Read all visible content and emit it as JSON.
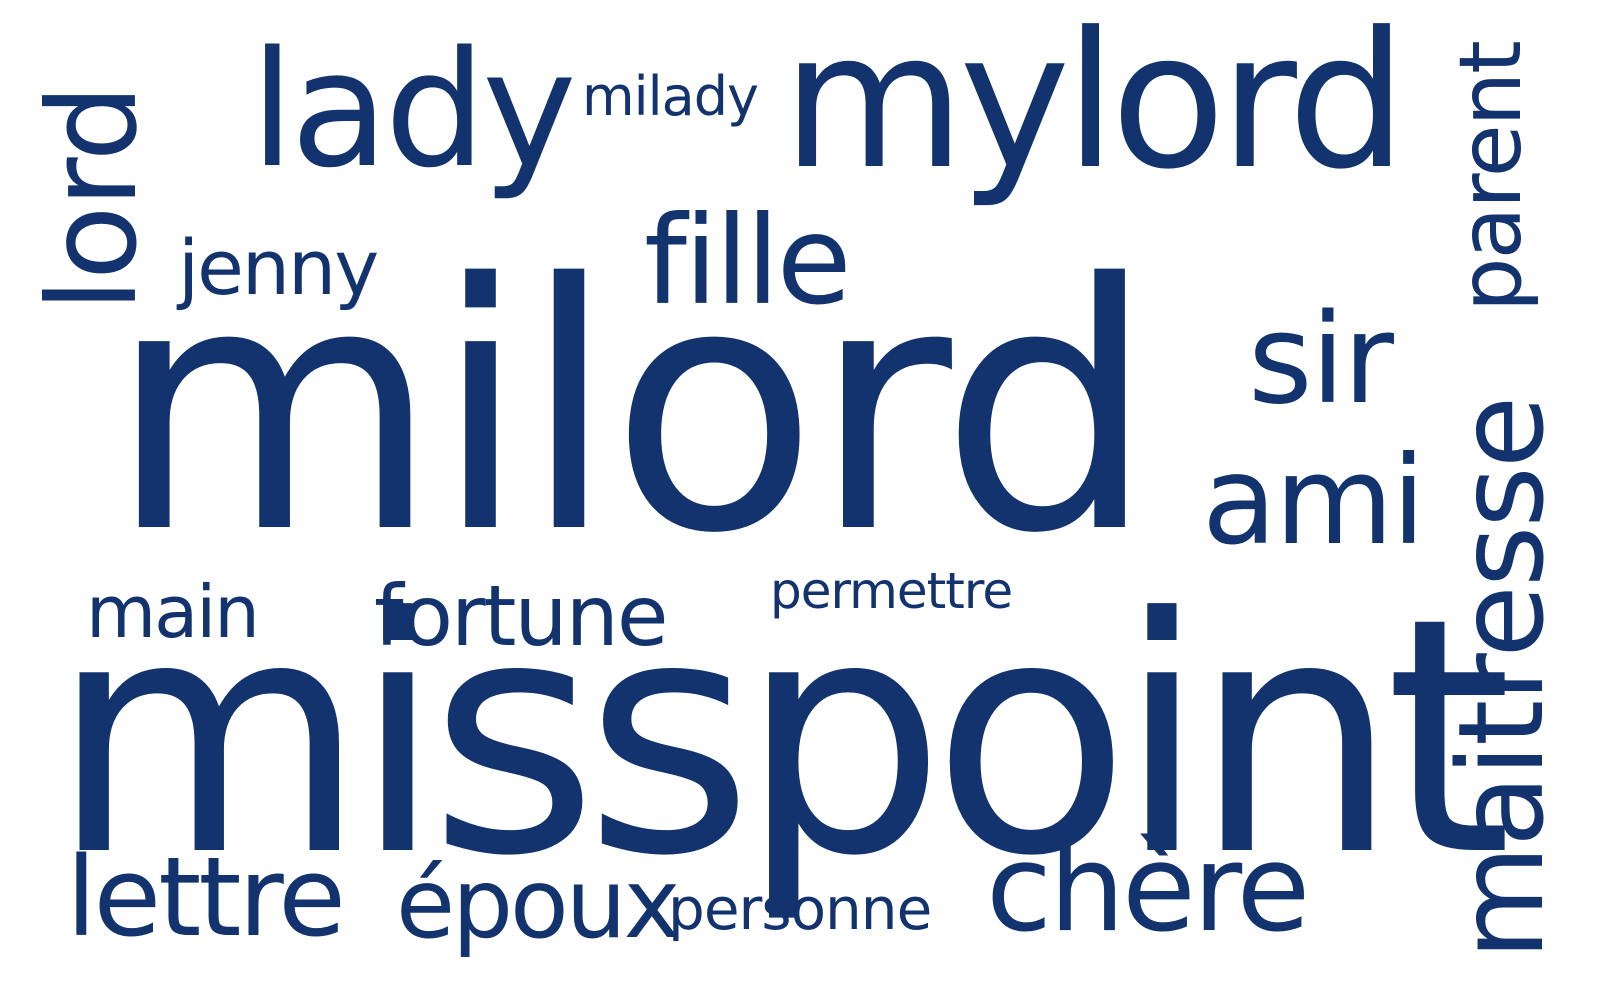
{
  "colors": {
    "background": "#ffffff",
    "word": "#13336e"
  },
  "words": [
    {
      "text": "milord",
      "weight": 100,
      "orientation": "horizontal"
    },
    {
      "text": "misspoint",
      "weight": 98,
      "orientation": "horizontal"
    },
    {
      "text": "mylord",
      "weight": 56,
      "orientation": "horizontal"
    },
    {
      "text": "lady",
      "weight": 42,
      "orientation": "horizontal"
    },
    {
      "text": "lord",
      "weight": 36,
      "orientation": "vertical"
    },
    {
      "text": "maitresse",
      "weight": 34,
      "orientation": "vertical"
    },
    {
      "text": "chère",
      "weight": 32,
      "orientation": "horizontal"
    },
    {
      "text": "sir",
      "weight": 30,
      "orientation": "horizontal"
    },
    {
      "text": "ami",
      "weight": 28,
      "orientation": "horizontal"
    },
    {
      "text": "fille",
      "weight": 28,
      "orientation": "horizontal"
    },
    {
      "text": "lettre",
      "weight": 25,
      "orientation": "horizontal"
    },
    {
      "text": "parent",
      "weight": 23,
      "orientation": "vertical"
    },
    {
      "text": "époux",
      "weight": 22,
      "orientation": "horizontal"
    },
    {
      "text": "fortune",
      "weight": 19,
      "orientation": "horizontal"
    },
    {
      "text": "jenny",
      "weight": 18,
      "orientation": "horizontal"
    },
    {
      "text": "main",
      "weight": 17,
      "orientation": "horizontal"
    },
    {
      "text": "personne",
      "weight": 15,
      "orientation": "horizontal"
    },
    {
      "text": "milady",
      "weight": 14,
      "orientation": "horizontal"
    },
    {
      "text": "permettre",
      "weight": 13,
      "orientation": "horizontal"
    }
  ]
}
